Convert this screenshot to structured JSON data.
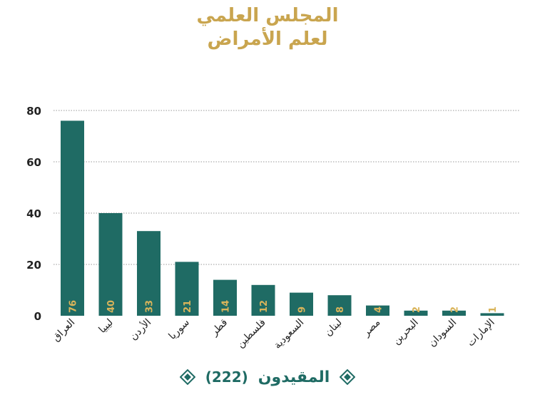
{
  "title_line1": "المجلس العلمي",
  "title_line2": "لعلم الأمراض",
  "legend": {
    "label": "المقيدون",
    "count": "(222)"
  },
  "colors": {
    "bar": "#1f6b64",
    "title": "#c9a54f",
    "value_label": "#d9b45a",
    "axis_text": "#222222",
    "grid": "#9a9a9a"
  },
  "chart_data": {
    "type": "bar",
    "categories": [
      "العراق",
      "ليبيا",
      "الأردن",
      "سوريا",
      "قطر",
      "فلسطين",
      "السعودية",
      "لبنان",
      "مصر",
      "البحرين",
      "السودان",
      "الإمارات"
    ],
    "values": [
      76,
      40,
      33,
      21,
      14,
      12,
      9,
      8,
      4,
      2,
      2,
      1
    ],
    "ylim": [
      0,
      80
    ],
    "yticks": [
      0,
      20,
      40,
      60,
      80
    ],
    "grid": true,
    "legend_position": "bottom",
    "series": [
      {
        "name": "المقيدون (222)",
        "values": [
          76,
          40,
          33,
          21,
          14,
          12,
          9,
          8,
          4,
          2,
          2,
          1
        ]
      }
    ]
  }
}
